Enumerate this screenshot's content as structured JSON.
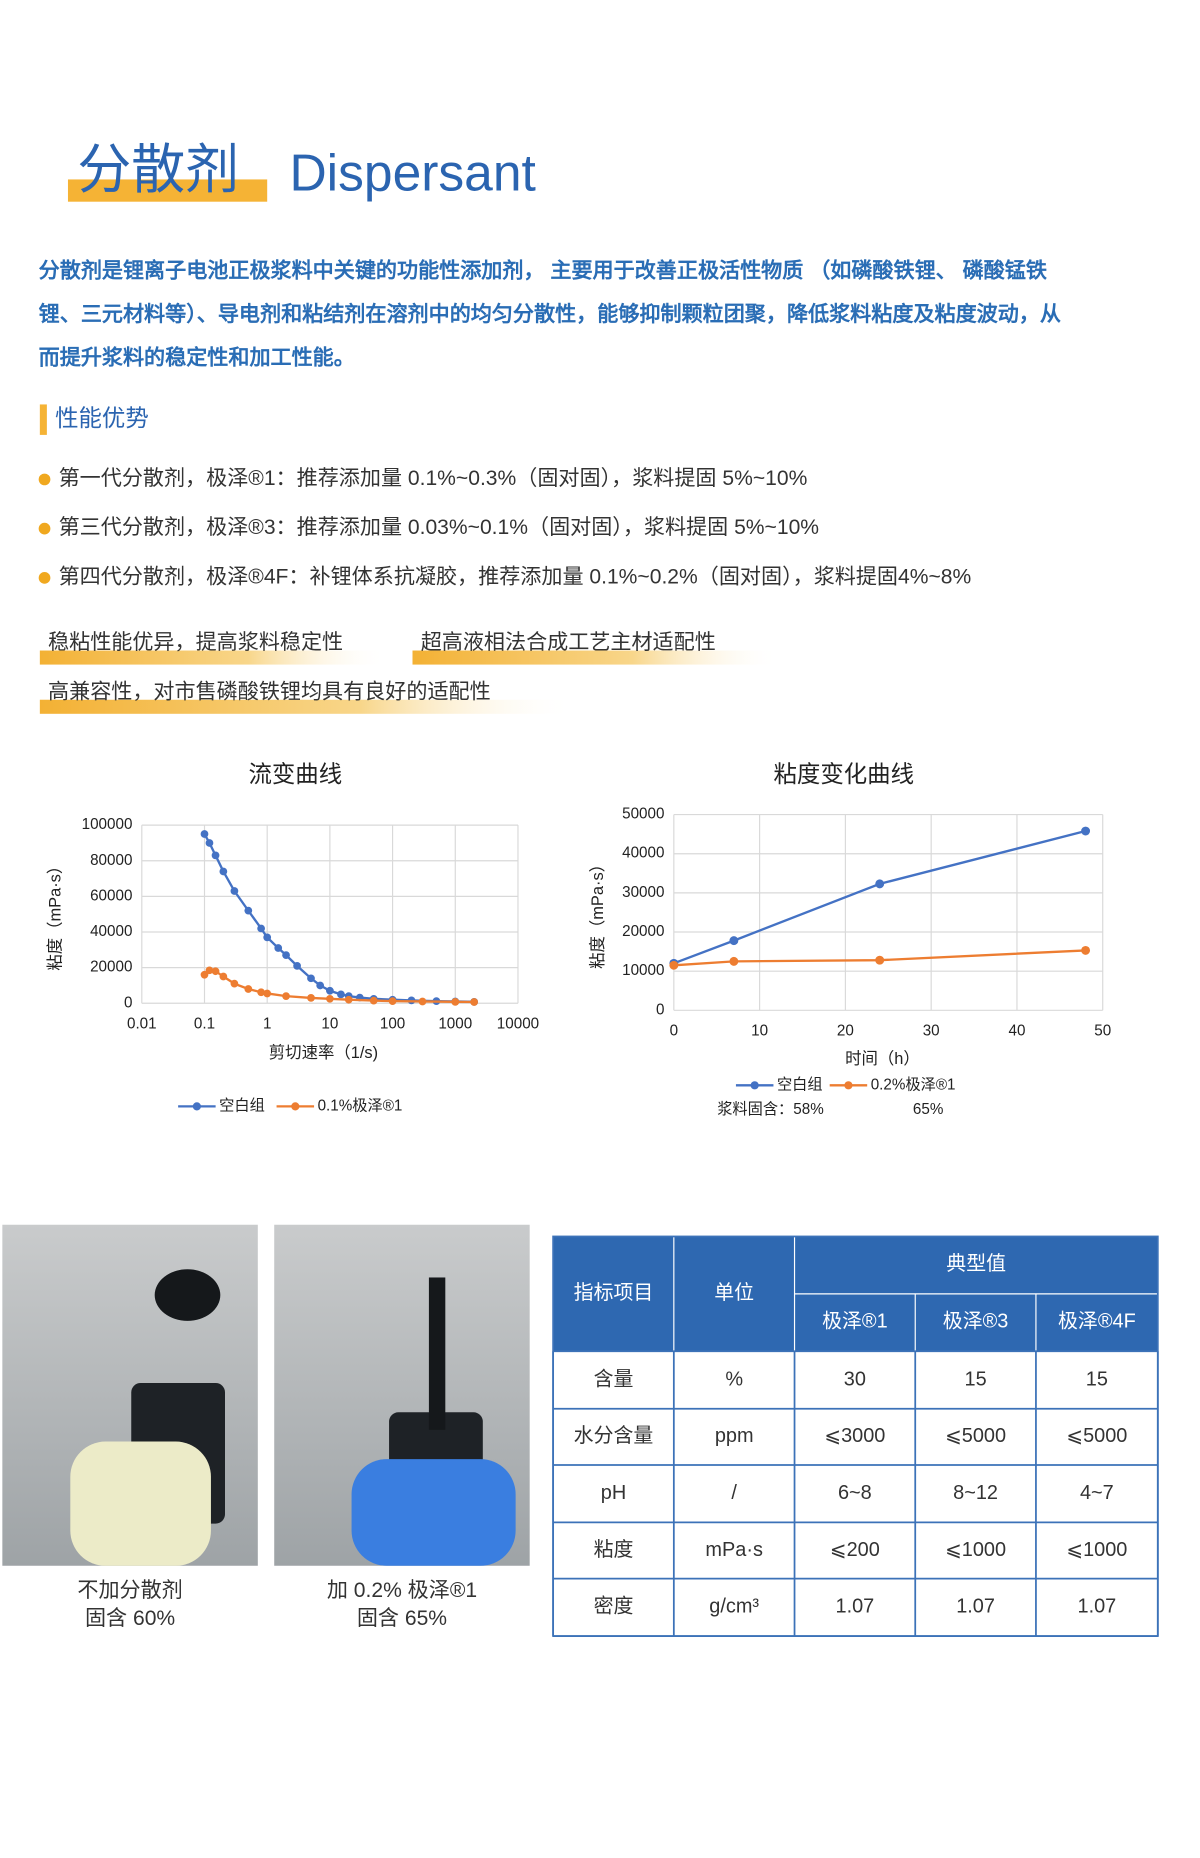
{
  "header": {
    "title_cn": "分散剂",
    "title_en": "Dispersant"
  },
  "intro_lines": [
    "分散剂是锂离子电池正极浆料中关键的功能性添加剂， 主要用于改善正极活性物质 （如磷酸铁锂、 磷酸锰铁",
    "锂、三元材料等）、导电剂和粘结剂在溶剂中的均匀分散性，能够抑制颗粒团聚，降低浆料粘度及粘度波动，从",
    "而提升浆料的稳定性和加工性能。"
  ],
  "section_title": "性能优势",
  "bullets": [
    "第一代分散剂，极泽®1：推荐添加量 0.1%~0.3%（固对固），浆料提固 5%~10%",
    "第三代分散剂，极泽®3：推荐添加量 0.03%~0.1%（固对固），浆料提固 5%~10%",
    "第四代分散剂，极泽®4F：补锂体系抗凝胶，推荐添加量 0.1%~0.2%（固对固），浆料提固4%~8%"
  ],
  "features": [
    "稳粘性能优异，提高浆料稳定性",
    "超高液相法合成工艺主材适配性",
    "高兼容性，对市售磷酸铁锂均具有良好的适配性"
  ],
  "chart_data": [
    {
      "type": "line",
      "title": "流变曲线",
      "x_label": "剪切速率（1/s)",
      "y_label": "粘度（mPa·s）",
      "log_x": true,
      "grid": true,
      "xlim": [
        0.01,
        10000
      ],
      "xticks": [
        0.01,
        0.1,
        1,
        10,
        100,
        1000,
        10000
      ],
      "ylim": [
        0,
        100000
      ],
      "yticks": [
        0,
        20000,
        40000,
        60000,
        80000,
        100000
      ],
      "series": [
        {
          "name": "空白组",
          "color": "#4472c4",
          "x": [
            0.1,
            0.12,
            0.15,
            0.2,
            0.3,
            0.5,
            0.8,
            1,
            1.5,
            2,
            3,
            5,
            7,
            10,
            15,
            20,
            30,
            50,
            100,
            200,
            500,
            1000,
            2000
          ],
          "values": [
            95000,
            90000,
            83000,
            74000,
            63000,
            52000,
            42000,
            37000,
            31000,
            27000,
            21000,
            14000,
            10000,
            7000,
            5000,
            4000,
            3200,
            2500,
            2000,
            1600,
            1200,
            1000,
            800
          ]
        },
        {
          "name": "0.1%极泽®1",
          "color": "#ed7d31",
          "x": [
            0.1,
            0.12,
            0.15,
            0.2,
            0.3,
            0.5,
            0.8,
            1,
            2,
            5,
            10,
            20,
            50,
            100,
            300,
            1000,
            2000
          ],
          "values": [
            16000,
            18500,
            18000,
            15000,
            11000,
            8000,
            6200,
            5500,
            4000,
            3000,
            2500,
            2000,
            1500,
            1200,
            1000,
            800,
            700
          ]
        }
      ]
    },
    {
      "type": "line",
      "title": "粘度变化曲线",
      "x_label": "时间（h）",
      "y_label": "粘度（mPa·s）",
      "log_x": false,
      "grid": true,
      "xlim": [
        0,
        50
      ],
      "xticks": [
        0,
        10,
        20,
        30,
        40,
        50
      ],
      "ylim": [
        0,
        50000
      ],
      "yticks": [
        0,
        10000,
        20000,
        30000,
        40000,
        50000
      ],
      "x": [
        0,
        7,
        24,
        48
      ],
      "series": [
        {
          "name": "空白组",
          "color": "#4472c4",
          "values": [
            12000,
            17800,
            32300,
            45800
          ]
        },
        {
          "name": "0.2%极泽®1",
          "color": "#ed7d31",
          "values": [
            11500,
            12500,
            12800,
            15300
          ]
        }
      ],
      "annotations": [
        "浆料固含：58%",
        "65%"
      ]
    }
  ],
  "photos": [
    {
      "caption": [
        "不加分散剂",
        "固含 60%"
      ]
    },
    {
      "caption": [
        "加 0.2% 极泽®1",
        "固含 65%"
      ]
    }
  ],
  "table": {
    "header": [
      "指标项目",
      "单位",
      "典型值"
    ],
    "subheader": [
      "极泽®1",
      "极泽®3",
      "极泽®4F"
    ],
    "rows": [
      [
        "含量",
        "%",
        "30",
        "15",
        "15"
      ],
      [
        "水分含量",
        "ppm",
        "⩽3000",
        "⩽5000",
        "⩽5000"
      ],
      [
        "pH",
        "/",
        "6~8",
        "8~12",
        "4~7"
      ],
      [
        "粘度",
        "mPa·s",
        "⩽200",
        "⩽1000",
        "⩽1000"
      ],
      [
        "密度",
        "g/cm³",
        "1.07",
        "1.07",
        "1.07"
      ]
    ]
  }
}
